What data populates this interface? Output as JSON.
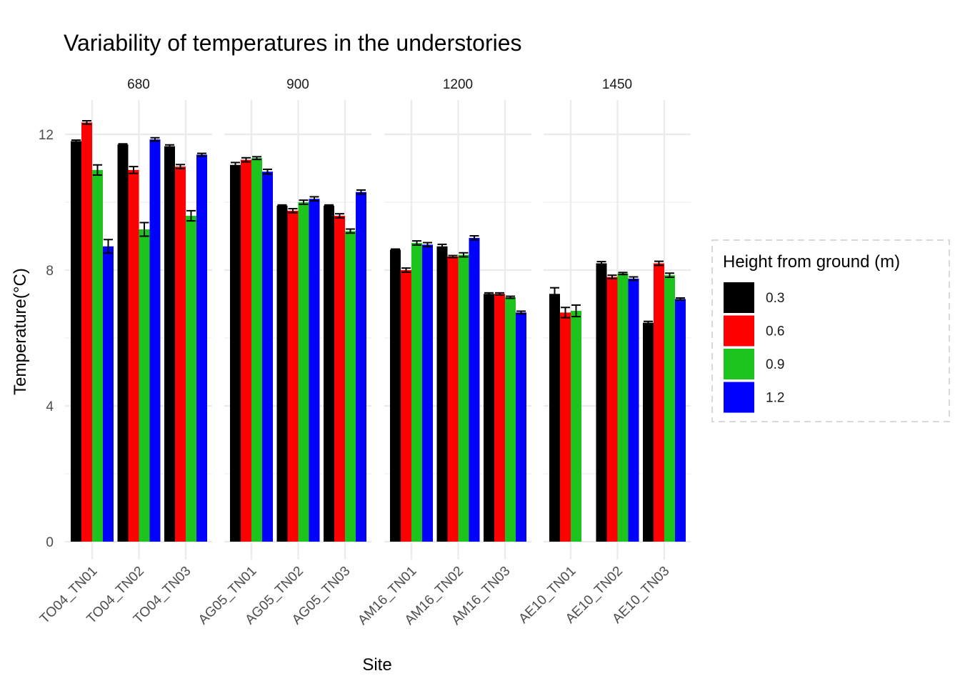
{
  "chart_data": {
    "type": "bar",
    "title": "Variability of temperatures in the understories",
    "xlabel": "Site",
    "ylabel": "Temperature(°C)",
    "ylim": [
      -0.5,
      13.0
    ],
    "yticks": [
      0,
      4,
      8,
      12
    ],
    "grid": true,
    "legend": {
      "title": "Height from ground (m)",
      "position": "right",
      "entries": [
        {
          "label": "0.3",
          "color": "#000000"
        },
        {
          "label": "0.6",
          "color": "#ff0000"
        },
        {
          "label": "0.9",
          "color": "#1ec41e"
        },
        {
          "label": "1.2",
          "color": "#0000ff"
        }
      ]
    },
    "facets": [
      {
        "label": "680",
        "sites": [
          {
            "name": "TO04_TN01",
            "values": [
              11.8,
              12.35,
              10.95,
              8.7
            ],
            "errors": [
              0.03,
              0.05,
              0.15,
              0.2
            ]
          },
          {
            "name": "TO04_TN02",
            "values": [
              11.7,
              10.95,
              9.2,
              11.85
            ],
            "errors": [
              0.02,
              0.1,
              0.2,
              0.05
            ]
          },
          {
            "name": "TO04_TN03",
            "values": [
              11.65,
              11.05,
              9.6,
              11.4
            ],
            "errors": [
              0.04,
              0.06,
              0.15,
              0.04
            ]
          }
        ]
      },
      {
        "label": "900",
        "sites": [
          {
            "name": "AG05_TN01",
            "values": [
              11.1,
              11.25,
              11.3,
              10.9
            ],
            "errors": [
              0.07,
              0.06,
              0.04,
              0.07
            ]
          },
          {
            "name": "AG05_TN02",
            "values": [
              9.9,
              9.75,
              10.0,
              10.1
            ],
            "errors": [
              0.02,
              0.06,
              0.06,
              0.06
            ]
          },
          {
            "name": "AG05_TN03",
            "values": [
              9.9,
              9.6,
              9.15,
              10.3
            ],
            "errors": [
              0.02,
              0.06,
              0.06,
              0.06
            ]
          }
        ]
      },
      {
        "label": "1200",
        "sites": [
          {
            "name": "AM16_TN01",
            "values": [
              8.6,
              8.0,
              8.8,
              8.75
            ],
            "errors": [
              0.02,
              0.06,
              0.06,
              0.06
            ]
          },
          {
            "name": "AM16_TN02",
            "values": [
              8.7,
              8.4,
              8.45,
              8.95
            ],
            "errors": [
              0.06,
              0.03,
              0.06,
              0.06
            ]
          },
          {
            "name": "AM16_TN03",
            "values": [
              7.3,
              7.3,
              7.2,
              6.75
            ],
            "errors": [
              0.03,
              0.03,
              0.03,
              0.04
            ]
          }
        ]
      },
      {
        "label": "1450",
        "sites": [
          {
            "name": "AE10_TN01",
            "values": [
              7.3,
              6.75,
              6.8,
              null
            ],
            "errors": [
              0.18,
              0.15,
              0.17,
              null
            ]
          },
          {
            "name": "AE10_TN02",
            "values": [
              8.2,
              7.8,
              7.9,
              7.75
            ],
            "errors": [
              0.05,
              0.05,
              0.03,
              0.05
            ]
          },
          {
            "name": "AE10_TN03",
            "values": [
              6.45,
              8.2,
              7.85,
              7.15
            ],
            "errors": [
              0.04,
              0.06,
              0.06,
              0.03
            ]
          }
        ]
      }
    ]
  }
}
